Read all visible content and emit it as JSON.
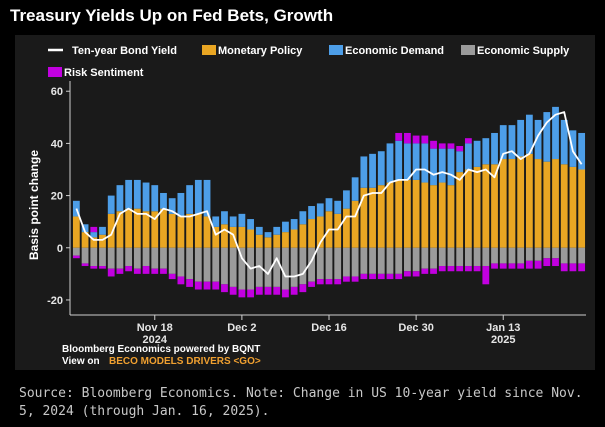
{
  "title": "Treasury Yields Up on Fed Bets, Growth",
  "credit": {
    "line1": "Bloomberg Economics powered by BQNT",
    "line2_prefix": "View on",
    "line2_link": "BECO MODELS DRIVERS <GO>"
  },
  "source_note": "Source: Bloomberg Economics. Note: Change in US 10-year yield since Nov. 5, 2024 (through Jan. 16, 2025).",
  "colors": {
    "monetary": "#e9a623",
    "demand": "#4d9ee8",
    "supply": "#9b9b9b",
    "risk": "#c200e0",
    "line": "#ffffff",
    "link": "#f0a030"
  },
  "chart_data": {
    "type": "bar",
    "stacked": true,
    "title": "Treasury Yields Up on Fed Bets, Growth",
    "ylabel": "Basis point change",
    "ylim": [
      -25,
      62
    ],
    "yticks": [
      -20,
      0,
      20,
      40,
      60
    ],
    "grid": false,
    "legend_position": "top",
    "x_ticks": [
      {
        "label": "Nov 18",
        "year": "2024",
        "index": 9
      },
      {
        "label": "Dec 2",
        "year": "",
        "index": 19
      },
      {
        "label": "Dec 16",
        "year": "",
        "index": 29
      },
      {
        "label": "Dec 30",
        "year": "",
        "index": 39
      },
      {
        "label": "Jan 13",
        "year": "2025",
        "index": 49
      }
    ],
    "series": [
      {
        "name": "Monetary Policy",
        "type": "bar",
        "values": [
          12,
          6,
          4,
          5,
          13,
          14,
          15,
          15,
          14,
          14,
          15,
          13,
          12,
          13,
          13,
          12,
          8,
          9,
          8,
          8,
          7,
          5,
          4,
          5,
          6,
          7,
          9,
          11,
          12,
          14,
          13,
          15,
          18,
          23,
          23,
          24,
          25,
          26,
          26,
          26,
          25,
          24,
          25,
          24,
          29,
          30,
          31,
          32,
          32,
          34,
          34,
          35,
          36,
          34,
          33,
          34,
          32,
          31,
          30
        ]
      },
      {
        "name": "Economic Demand",
        "type": "bar",
        "values": [
          6,
          3,
          2,
          3,
          7,
          10,
          11,
          11,
          11,
          10,
          6,
          6,
          9,
          11,
          13,
          14,
          4,
          5,
          4,
          5,
          4,
          3,
          2,
          3,
          4,
          4,
          5,
          5,
          5,
          5,
          5,
          7,
          9,
          12,
          13,
          13,
          15,
          15,
          14,
          14,
          15,
          14,
          13,
          14,
          8,
          10,
          10,
          10,
          12,
          13,
          13,
          14,
          15,
          15,
          19,
          20,
          17,
          14,
          14
        ]
      },
      {
        "name": "Economic Supply",
        "type": "bar",
        "values": [
          -3,
          -6,
          -7,
          -7,
          -8,
          -8,
          -7,
          -8,
          -7,
          -8,
          -8,
          -10,
          -11,
          -12,
          -13,
          -13,
          -13,
          -14,
          -15,
          -16,
          -16,
          -15,
          -15,
          -15,
          -16,
          -15,
          -14,
          -13,
          -12,
          -12,
          -12,
          -11,
          -11,
          -10,
          -10,
          -10,
          -10,
          -10,
          -9,
          -9,
          -8,
          -8,
          -7,
          -7,
          -7,
          -7,
          -7,
          -7,
          -6,
          -6,
          -6,
          -6,
          -5,
          -5,
          -4,
          -4,
          -6,
          -6,
          -6
        ]
      },
      {
        "name": "Risk Sentiment",
        "type": "bar",
        "values": [
          -1,
          -1,
          -1,
          -1,
          -3,
          -2,
          -2,
          -2,
          -3,
          -2,
          -2,
          -2,
          -3,
          -3,
          -3,
          -3,
          -3,
          -3,
          -3,
          -3,
          -3,
          -3,
          -3,
          -3,
          -3,
          -3,
          -3,
          -2,
          -2,
          -2,
          -2,
          -2,
          -2,
          -2,
          -2,
          -2,
          -2,
          -2,
          -2,
          -2,
          -2,
          -2,
          -2,
          -2,
          -2,
          -2,
          -2,
          -7,
          -2,
          -2,
          -2,
          -2,
          -3,
          -3,
          -3,
          -3,
          -3,
          -3,
          -3
        ],
        "pos_values": [
          0,
          0,
          2,
          0,
          0,
          0,
          0,
          0,
          0,
          0,
          0,
          0,
          0,
          0,
          0,
          0,
          0,
          0,
          0,
          0,
          0,
          0,
          0,
          0,
          0,
          0,
          0,
          0,
          0,
          0,
          0,
          0,
          0,
          0,
          0,
          0,
          0,
          3,
          4,
          3,
          3,
          3,
          2,
          2,
          2,
          2,
          0,
          0,
          0,
          0,
          0,
          0,
          0,
          0,
          0,
          0,
          0,
          0,
          0
        ]
      },
      {
        "name": "Ten-year Bond Yield",
        "type": "line",
        "values": [
          15,
          6,
          3,
          3,
          5,
          13,
          15,
          13,
          13,
          11,
          15,
          14,
          12,
          12,
          13,
          14,
          5,
          7,
          5,
          -4,
          -8,
          -7,
          -10,
          -4,
          -11,
          -11,
          -10,
          -5,
          2,
          7,
          7,
          12,
          12,
          20,
          21,
          21,
          25,
          26,
          26,
          30,
          30,
          28,
          29,
          28,
          26,
          30,
          29,
          30,
          27,
          36,
          37,
          34,
          36,
          43,
          48,
          51,
          52,
          37,
          32
        ]
      }
    ]
  }
}
